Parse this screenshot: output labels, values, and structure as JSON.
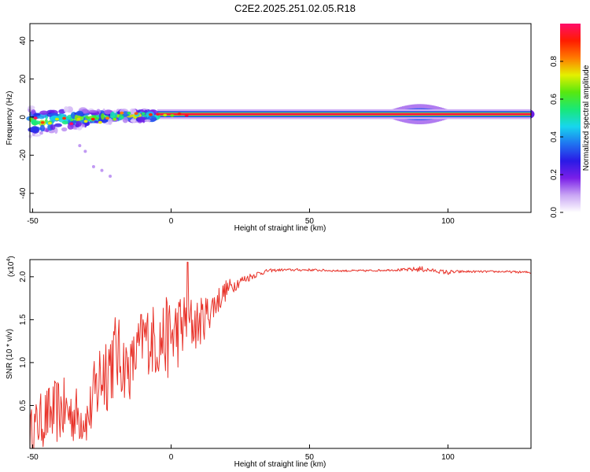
{
  "title": "C2E2.2025.251.02.05.R18",
  "chart_data": [
    {
      "type": "heatmap",
      "xlabel": "Height of straight line (km)",
      "ylabel": "Frequency (Hz)",
      "xlim": [
        -51,
        130
      ],
      "ylim": [
        -50,
        49
      ],
      "xticks": [
        -50,
        0,
        50,
        100
      ],
      "yticks": [
        -40,
        -20,
        0,
        20,
        40
      ],
      "colorbar": {
        "label": "Normalized spectral amplitude",
        "range": [
          0,
          1
        ],
        "ticks": [
          "0.0",
          "0.2",
          "0.4",
          "0.6",
          "0.8"
        ],
        "colors": [
          "#ffffff",
          "#c9a6f4",
          "#7a1fe8",
          "#2a1ae6",
          "#1f74f0",
          "#17d6ee",
          "#18e878",
          "#57e80f",
          "#e4f000",
          "#ff7a00",
          "#ff1c00",
          "#ff0d6a"
        ]
      },
      "dominant_frequency_hz": 1.5,
      "features": [
        {
          "label": "scattered low-frequency energy",
          "x_range": [
            -51,
            -5
          ],
          "freq_range": [
            -20,
            6
          ]
        },
        {
          "label": "strong narrow band",
          "x_range": [
            -5,
            130
          ],
          "freq_hz": 1.5
        },
        {
          "label": "broadened band",
          "x_range": [
            78,
            101
          ],
          "freq_range": [
            -1,
            5
          ]
        }
      ]
    },
    {
      "type": "line",
      "xlabel": "Height of straight line (km)",
      "ylabel": "SNR (10 * v/v)",
      "yscale_label": "(x10",
      "yscale_exponent": "4",
      "xlim": [
        -51,
        130
      ],
      "ylim": [
        0,
        2.2
      ],
      "xticks": [
        -50,
        0,
        50,
        100
      ],
      "yticks": [
        "0.5",
        "1.0",
        "1.5",
        "2.0"
      ],
      "color": "#e8332a",
      "series_envelope": {
        "x": [
          -51,
          -46,
          -40,
          -35,
          -30,
          -25,
          -20,
          -15,
          -10,
          -5,
          0,
          5,
          10,
          15,
          20,
          25,
          30,
          35,
          40,
          50,
          60,
          70,
          80,
          85,
          90,
          95,
          100,
          105,
          110,
          120,
          130
        ],
        "mean": [
          0.2,
          0.35,
          0.45,
          0.4,
          0.35,
          0.9,
          1.1,
          0.9,
          1.3,
          1.25,
          1.3,
          1.45,
          1.45,
          1.65,
          1.85,
          1.95,
          2.02,
          2.07,
          2.08,
          2.08,
          2.07,
          2.07,
          2.08,
          2.08,
          2.09,
          2.07,
          2.05,
          2.06,
          2.06,
          2.06,
          2.05
        ],
        "amplitude": [
          0.25,
          0.35,
          0.4,
          0.35,
          0.3,
          0.6,
          0.5,
          0.35,
          0.4,
          0.45,
          0.5,
          0.4,
          0.3,
          0.2,
          0.12,
          0.06,
          0.04,
          0.02,
          0.015,
          0.015,
          0.012,
          0.012,
          0.012,
          0.02,
          0.035,
          0.02,
          0.03,
          0.015,
          0.012,
          0.012,
          0.015
        ]
      },
      "peak": {
        "x": 6,
        "y": 2.17
      }
    }
  ]
}
